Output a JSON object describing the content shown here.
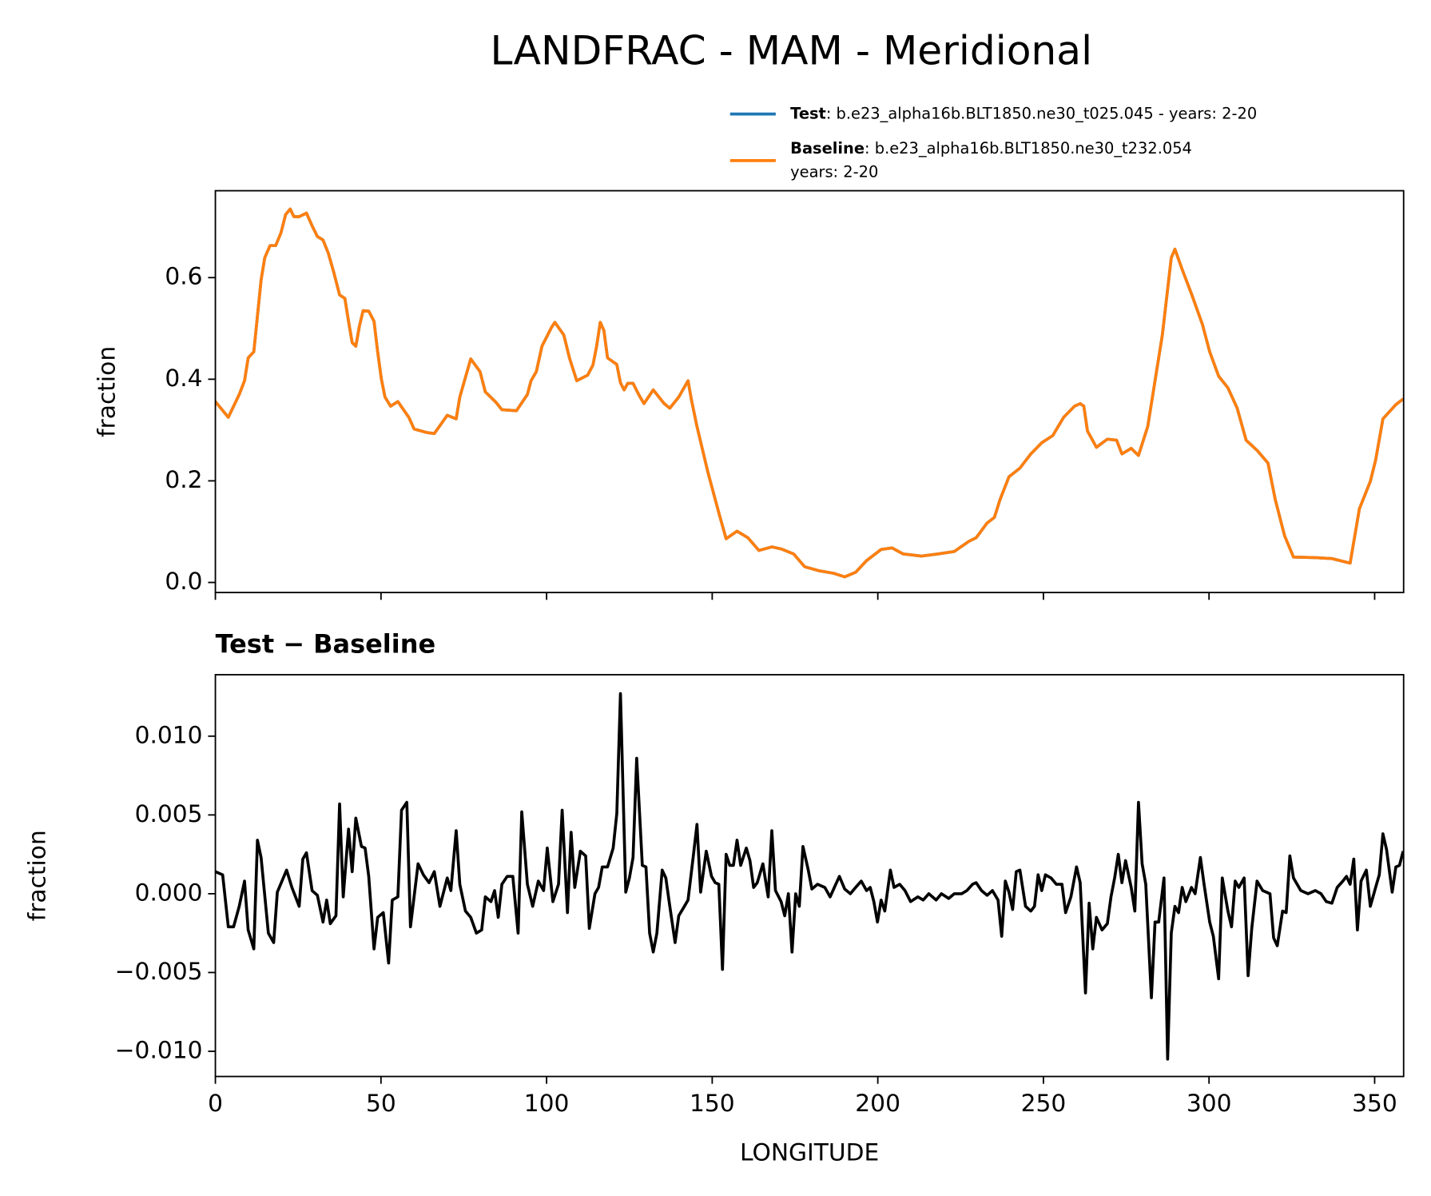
{
  "title": "LANDFRAC - MAM - Meridional",
  "chart_data": [
    {
      "type": "line",
      "ylabel": "fraction",
      "xtick_labels": false,
      "x": [
        0,
        3.9,
        7.2,
        8.8,
        9.9,
        11.6,
        13.8,
        14.9,
        16.5,
        18.2,
        19.8,
        21.2,
        22.6,
        23.7,
        25.3,
        27.5,
        29.2,
        30.8,
        32.5,
        34.1,
        35.8,
        37.5,
        39.1,
        40.2,
        41.3,
        42.4,
        43.5,
        44.6,
        46.3,
        47.9,
        49.0,
        50.1,
        51.2,
        52.9,
        55.1,
        58.4,
        60.0,
        63.9,
        66.1,
        70.0,
        72.7,
        73.8,
        77.1,
        79.9,
        81.5,
        84.8,
        86.5,
        90.9,
        94.2,
        95.3,
        96.9,
        98.6,
        101.4,
        102.5,
        105.2,
        106.9,
        109.1,
        112.4,
        114.0,
        115.1,
        116.2,
        117.3,
        118.4,
        121.2,
        122.3,
        123.4,
        124.5,
        126.1,
        127.8,
        129.4,
        132.2,
        135.5,
        137.2,
        139.9,
        142.7,
        143.8,
        145.4,
        148.7,
        152.0,
        154.2,
        157.5,
        160.8,
        164.1,
        168.0,
        170.8,
        174.6,
        177.9,
        182.3,
        186.7,
        190.0,
        193.3,
        196.6,
        201.0,
        204.3,
        207.7,
        213.2,
        218.1,
        223.1,
        227.5,
        229.7,
        233.0,
        235.2,
        236.9,
        239.6,
        242.9,
        246.2,
        249.5,
        252.8,
        256.1,
        259.4,
        261.1,
        262.2,
        263.3,
        266.0,
        269.3,
        272.1,
        273.7,
        276.5,
        278.7,
        281.5,
        283.7,
        285.9,
        288.6,
        289.7,
        291.9,
        294.7,
        298.0,
        300.2,
        302.9,
        305.7,
        308.5,
        311.2,
        314.5,
        317.8,
        320.0,
        322.8,
        325.5,
        331.6,
        337.1,
        342.6,
        345.4,
        348.7,
        350.3,
        352.5,
        356.4,
        358.6
      ],
      "series": [
        {
          "name": "Test",
          "description": [
            ": b.e23_alpha16b.BLT1850.ne30_t025.045 - years: 2-20"
          ],
          "color": "#1f77b4",
          "values": [
            0.356,
            0.325,
            0.37,
            0.397,
            0.442,
            0.454,
            0.595,
            0.639,
            0.663,
            0.663,
            0.688,
            0.724,
            0.735,
            0.72,
            0.72,
            0.727,
            0.702,
            0.681,
            0.674,
            0.648,
            0.609,
            0.566,
            0.559,
            0.514,
            0.472,
            0.465,
            0.505,
            0.535,
            0.534,
            0.514,
            0.454,
            0.401,
            0.365,
            0.347,
            0.356,
            0.325,
            0.302,
            0.295,
            0.293,
            0.329,
            0.322,
            0.365,
            0.44,
            0.415,
            0.375,
            0.354,
            0.34,
            0.338,
            0.37,
            0.397,
            0.415,
            0.465,
            0.501,
            0.512,
            0.487,
            0.442,
            0.397,
            0.408,
            0.428,
            0.465,
            0.512,
            0.496,
            0.442,
            0.429,
            0.393,
            0.379,
            0.392,
            0.392,
            0.37,
            0.352,
            0.379,
            0.352,
            0.343,
            0.365,
            0.397,
            0.357,
            0.307,
            0.217,
            0.137,
            0.086,
            0.101,
            0.088,
            0.063,
            0.07,
            0.066,
            0.056,
            0.031,
            0.023,
            0.018,
            0.011,
            0.02,
            0.043,
            0.065,
            0.068,
            0.056,
            0.052,
            0.056,
            0.061,
            0.081,
            0.088,
            0.117,
            0.128,
            0.163,
            0.208,
            0.225,
            0.253,
            0.275,
            0.289,
            0.325,
            0.347,
            0.352,
            0.347,
            0.298,
            0.266,
            0.282,
            0.28,
            0.253,
            0.264,
            0.25,
            0.307,
            0.397,
            0.487,
            0.639,
            0.656,
            0.616,
            0.568,
            0.508,
            0.454,
            0.406,
            0.383,
            0.343,
            0.28,
            0.26,
            0.235,
            0.163,
            0.092,
            0.05,
            0.049,
            0.047,
            0.038,
            0.145,
            0.199,
            0.241,
            0.322,
            0.35,
            0.361
          ]
        },
        {
          "name": "Baseline",
          "description": [
            ": b.e23_alpha16b.BLT1850.ne30_t232.054",
            "years: 2-20"
          ],
          "color": "#ff7f0e",
          "values": [
            0.356,
            0.325,
            0.37,
            0.397,
            0.442,
            0.454,
            0.595,
            0.639,
            0.663,
            0.663,
            0.688,
            0.724,
            0.735,
            0.72,
            0.72,
            0.727,
            0.702,
            0.681,
            0.674,
            0.648,
            0.609,
            0.566,
            0.559,
            0.514,
            0.472,
            0.465,
            0.505,
            0.535,
            0.534,
            0.514,
            0.454,
            0.401,
            0.365,
            0.347,
            0.356,
            0.325,
            0.302,
            0.295,
            0.293,
            0.329,
            0.322,
            0.365,
            0.44,
            0.415,
            0.375,
            0.354,
            0.34,
            0.338,
            0.37,
            0.397,
            0.415,
            0.465,
            0.501,
            0.512,
            0.487,
            0.442,
            0.397,
            0.408,
            0.428,
            0.465,
            0.512,
            0.496,
            0.442,
            0.429,
            0.393,
            0.379,
            0.392,
            0.392,
            0.37,
            0.352,
            0.379,
            0.352,
            0.343,
            0.365,
            0.397,
            0.357,
            0.307,
            0.217,
            0.137,
            0.086,
            0.101,
            0.088,
            0.063,
            0.07,
            0.066,
            0.056,
            0.031,
            0.023,
            0.018,
            0.011,
            0.02,
            0.043,
            0.065,
            0.068,
            0.056,
            0.052,
            0.056,
            0.061,
            0.081,
            0.088,
            0.117,
            0.128,
            0.163,
            0.208,
            0.225,
            0.253,
            0.275,
            0.289,
            0.325,
            0.347,
            0.352,
            0.347,
            0.298,
            0.266,
            0.282,
            0.28,
            0.253,
            0.264,
            0.25,
            0.307,
            0.397,
            0.487,
            0.639,
            0.656,
            0.616,
            0.568,
            0.508,
            0.454,
            0.406,
            0.383,
            0.343,
            0.28,
            0.26,
            0.235,
            0.163,
            0.092,
            0.05,
            0.049,
            0.047,
            0.038,
            0.145,
            0.199,
            0.241,
            0.322,
            0.35,
            0.361
          ]
        }
      ],
      "xlim": [
        0,
        358.75
      ],
      "ylim": [
        -0.0198,
        0.771
      ],
      "xticks": [
        0,
        50,
        100,
        150,
        200,
        250,
        300,
        350
      ],
      "yticks": [
        {
          "value": 0,
          "label": "0.0"
        },
        0.2,
        0.4,
        0.6
      ]
    },
    {
      "type": "line",
      "title": "Test − Baseline",
      "xlabel": "LONGITUDE",
      "ylabel": "fraction",
      "xtick_labels": true,
      "color": "#000000",
      "x": [
        0,
        2.2,
        3.9,
        5.5,
        7.2,
        8.8,
        9.9,
        11.6,
        12.7,
        13.8,
        16.0,
        17.6,
        18.7,
        21.5,
        23.1,
        25.3,
        26.4,
        27.5,
        29.2,
        30.8,
        32.5,
        33.6,
        34.7,
        36.4,
        37.5,
        38.6,
        40.2,
        41.3,
        42.4,
        44.1,
        45.2,
        46.3,
        47.9,
        49.0,
        50.7,
        52.3,
        53.4,
        55.1,
        56.2,
        57.8,
        58.9,
        61.2,
        62.8,
        64.5,
        66.1,
        67.8,
        70.0,
        71.1,
        72.7,
        73.8,
        75.5,
        77.1,
        78.8,
        80.4,
        81.5,
        83.2,
        84.3,
        85.4,
        86.5,
        88.1,
        89.8,
        91.4,
        92.5,
        94.2,
        95.8,
        97.5,
        99.1,
        100.2,
        101.9,
        103.6,
        104.7,
        106.3,
        107.4,
        108.5,
        110.2,
        111.8,
        112.9,
        114.6,
        115.7,
        116.8,
        118.4,
        120.1,
        121.2,
        122.3,
        123.9,
        125.0,
        126.1,
        127.2,
        128.9,
        130.0,
        131.1,
        132.2,
        133.3,
        134.9,
        136.0,
        137.2,
        138.8,
        139.9,
        141.6,
        142.7,
        144.3,
        145.4,
        146.5,
        148.2,
        149.8,
        150.9,
        152.0,
        153.1,
        154.2,
        155.3,
        156.4,
        157.5,
        158.6,
        160.3,
        161.4,
        162.5,
        163.6,
        165.3,
        166.9,
        168.0,
        169.1,
        170.8,
        171.9,
        173.0,
        174.1,
        175.2,
        176.3,
        177.4,
        179.0,
        180.1,
        181.8,
        184.0,
        185.6,
        187.3,
        188.4,
        190.0,
        191.7,
        193.3,
        195.0,
        196.6,
        197.7,
        198.8,
        199.9,
        201.0,
        202.1,
        203.8,
        204.9,
        206.6,
        208.2,
        209.9,
        212.1,
        213.7,
        215.4,
        217.6,
        219.2,
        221.4,
        223.1,
        225.3,
        226.9,
        228.6,
        229.7,
        231.3,
        233.0,
        234.6,
        236.3,
        237.4,
        238.5,
        239.6,
        240.7,
        241.8,
        242.9,
        244.6,
        246.2,
        247.3,
        248.4,
        249.5,
        250.6,
        252.3,
        253.9,
        255.6,
        256.7,
        258.3,
        260.0,
        261.1,
        262.7,
        263.8,
        264.9,
        266.0,
        267.7,
        269.3,
        270.4,
        271.5,
        272.6,
        273.7,
        274.8,
        276.5,
        277.6,
        278.7,
        279.8,
        280.9,
        282.6,
        283.7,
        284.8,
        286.4,
        287.5,
        288.6,
        289.7,
        290.8,
        291.9,
        293.0,
        294.7,
        295.8,
        297.4,
        298.5,
        300.2,
        301.3,
        302.9,
        304.0,
        305.7,
        306.8,
        307.9,
        309.0,
        310.6,
        311.8,
        312.9,
        314.5,
        316.2,
        318.4,
        319.5,
        320.6,
        322.2,
        323.3,
        324.4,
        325.5,
        327.7,
        329.9,
        332.1,
        333.8,
        335.4,
        337.1,
        338.7,
        340.4,
        341.5,
        342.6,
        343.7,
        344.8,
        345.9,
        347.5,
        348.7,
        350.3,
        351.4,
        352.5,
        353.6,
        355.3,
        356.4,
        357.5,
        358.6
      ],
      "values": [
        0.0014,
        0.0012,
        -0.0021,
        -0.0021,
        -0.0008,
        0.0008,
        -0.0023,
        -0.0035,
        0.0034,
        0.0023,
        -0.0025,
        -0.0031,
        0.0001,
        0.0015,
        0.0004,
        -0.0008,
        0.0022,
        0.0026,
        0.0002,
        -0.0001,
        -0.0018,
        -0.0004,
        -0.0019,
        -0.0014,
        0.0057,
        -0.0002,
        0.0041,
        0.0014,
        0.0048,
        0.003,
        0.0029,
        0.0011,
        -0.0035,
        -0.0015,
        -0.0012,
        -0.0044,
        -0.0004,
        -0.0002,
        0.0053,
        0.0058,
        -0.0021,
        0.0019,
        0.0012,
        0.0007,
        0.0014,
        -0.0008,
        0.001,
        0.0002,
        0.004,
        0.0006,
        -0.0011,
        -0.0015,
        -0.0025,
        -0.0023,
        -0.0002,
        -0.0005,
        0.0002,
        -0.0015,
        0.0006,
        0.0011,
        0.0011,
        -0.0025,
        0.0052,
        0.0006,
        -0.0008,
        0.0008,
        0.0002,
        0.0029,
        -0.0005,
        0.0006,
        0.0053,
        -0.0012,
        0.0039,
        0.0004,
        0.0027,
        0.0024,
        -0.0022,
        0,
        0.0004,
        0.0017,
        0.0017,
        0.0029,
        0.0051,
        0.0127,
        0.0001,
        0.001,
        0.0023,
        0.0086,
        0.0018,
        0.0017,
        -0.0025,
        -0.0037,
        -0.0025,
        0.0015,
        0.001,
        -0.0008,
        -0.0031,
        -0.0014,
        -0.0008,
        -0.0004,
        0.0024,
        0.0044,
        0.0001,
        0.0027,
        0.0011,
        0.0007,
        0.0006,
        -0.0048,
        0.0025,
        0.0018,
        0.0018,
        0.0034,
        0.0018,
        0.0029,
        0.0021,
        0.0004,
        0.0007,
        0.0019,
        -0.0002,
        0.004,
        0.0002,
        -0.0005,
        -0.0014,
        0,
        -0.0037,
        0,
        -0.0008,
        0.003,
        0.0015,
        0.0003,
        0.0006,
        0.0004,
        -0.0002,
        0.0006,
        0.0011,
        0.0003,
        0,
        0.0004,
        0.0008,
        0.0002,
        0.0004,
        -0.0005,
        -0.0018,
        -0.0004,
        -0.0011,
        0.0015,
        0.0004,
        0.0006,
        0.0002,
        -0.0005,
        -0.0002,
        -0.0004,
        0,
        -0.0004,
        0,
        -0.0003,
        0,
        0,
        0.0002,
        0.0006,
        0.0007,
        0.0002,
        -0.0001,
        0.0002,
        -0.0004,
        -0.0027,
        0.0008,
        0.0001,
        -0.001,
        0.0014,
        0.0015,
        -0.0008,
        -0.0011,
        -0.0008,
        0.0012,
        0.0002,
        0.0012,
        0.001,
        0.0006,
        0.0006,
        -0.0012,
        -0.0002,
        0.0017,
        0.0007,
        -0.0063,
        -0.0006,
        -0.0035,
        -0.0015,
        -0.0023,
        -0.0019,
        -0.0002,
        0.001,
        0.0025,
        0.0007,
        0.0021,
        0.0004,
        -0.0011,
        0.0058,
        0.0019,
        0.0006,
        -0.0066,
        -0.0018,
        -0.0018,
        0.001,
        -0.0105,
        -0.0025,
        -0.0008,
        -0.0012,
        0.0004,
        -0.0005,
        0.0004,
        0,
        0.0023,
        0.0006,
        -0.0018,
        -0.0027,
        -0.0054,
        0.001,
        -0.0011,
        -0.0021,
        0.0008,
        0.0004,
        0.001,
        -0.0052,
        -0.0022,
        0.0008,
        0.0002,
        0,
        -0.0028,
        -0.0033,
        -0.0011,
        -0.0012,
        0.0024,
        0.001,
        0.0002,
        0,
        0.0002,
        0,
        -0.0005,
        -0.0006,
        0.0004,
        0.0008,
        0.0011,
        0.0006,
        0.0022,
        -0.0023,
        0.0008,
        0.0015,
        -0.0008,
        0.0004,
        0.0012,
        0.0038,
        0.0028,
        0.0001,
        0.0017,
        0.0018,
        0.0027
      ],
      "xlim": [
        0,
        358.75
      ],
      "ylim": [
        -0.0116,
        0.0139
      ],
      "xticks": [
        0,
        50,
        100,
        150,
        200,
        250,
        300,
        350
      ],
      "yticks": [
        {
          "value": -0.01,
          "label": "−0.010"
        },
        {
          "value": -0.005,
          "label": "−0.005"
        },
        {
          "value": 0,
          "label": "0.000"
        },
        0.005,
        {
          "value": 0.01,
          "label": "0.010"
        }
      ]
    }
  ]
}
